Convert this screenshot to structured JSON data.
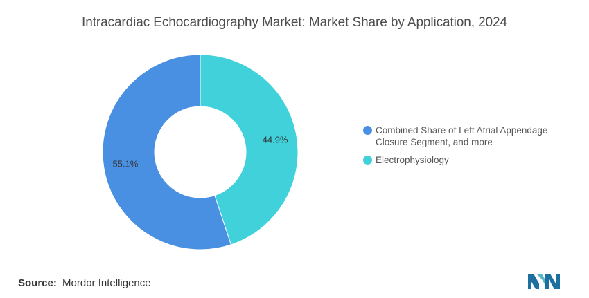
{
  "title": "Intracardiac Echocardiography Market: Market Share by Application, 2024",
  "chart_data": {
    "type": "pie",
    "donut": true,
    "slices": [
      {
        "label": "Electrophysiology",
        "value": 44.9,
        "display": "44.9%",
        "color": "#40d1db"
      },
      {
        "label": "Combined Share of Left Atrial Appendage Closure Segment, and more",
        "value": 55.1,
        "display": "55.1%",
        "color": "#4a90e2"
      }
    ],
    "legend": {
      "placement": "right",
      "items": [
        {
          "label": "Combined Share of Left Atrial Appendage Closure Segment, and more",
          "color": "#4a90e2"
        },
        {
          "label": "Electrophysiology",
          "color": "#40d1db"
        }
      ]
    }
  },
  "source": {
    "label": "Source:",
    "value": "Mordor Intelligence"
  },
  "logo": {
    "icon": "mordor-intelligence-logo",
    "colors": [
      "#1d6fa0",
      "#5ab7c7"
    ]
  }
}
